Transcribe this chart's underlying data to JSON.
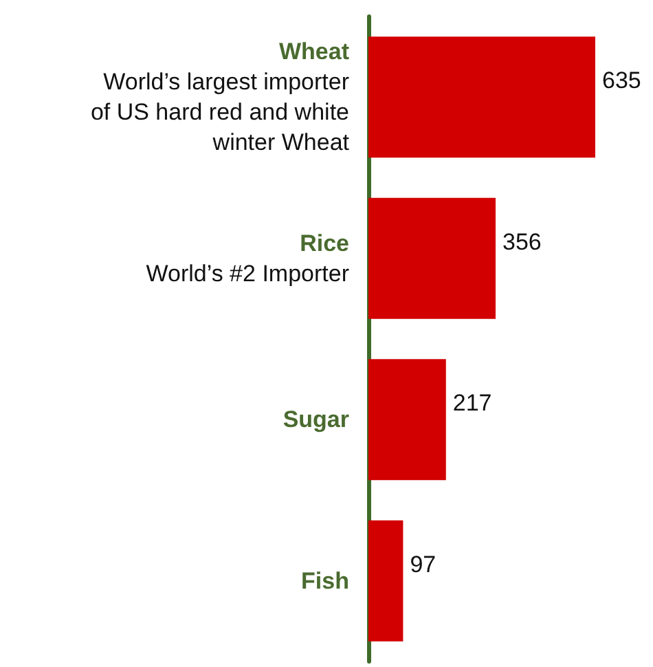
{
  "chart_data": {
    "type": "bar",
    "orientation": "horizontal",
    "categories": [
      "Wheat",
      "Rice",
      "Sugar",
      "Fish"
    ],
    "values": [
      635,
      356,
      217,
      97
    ],
    "color": "#d20000",
    "data_labels": true,
    "annotations": [
      "World’s largest importer of US hard red and white winter Wheat",
      "World’s #2 Importer"
    ]
  }
}
